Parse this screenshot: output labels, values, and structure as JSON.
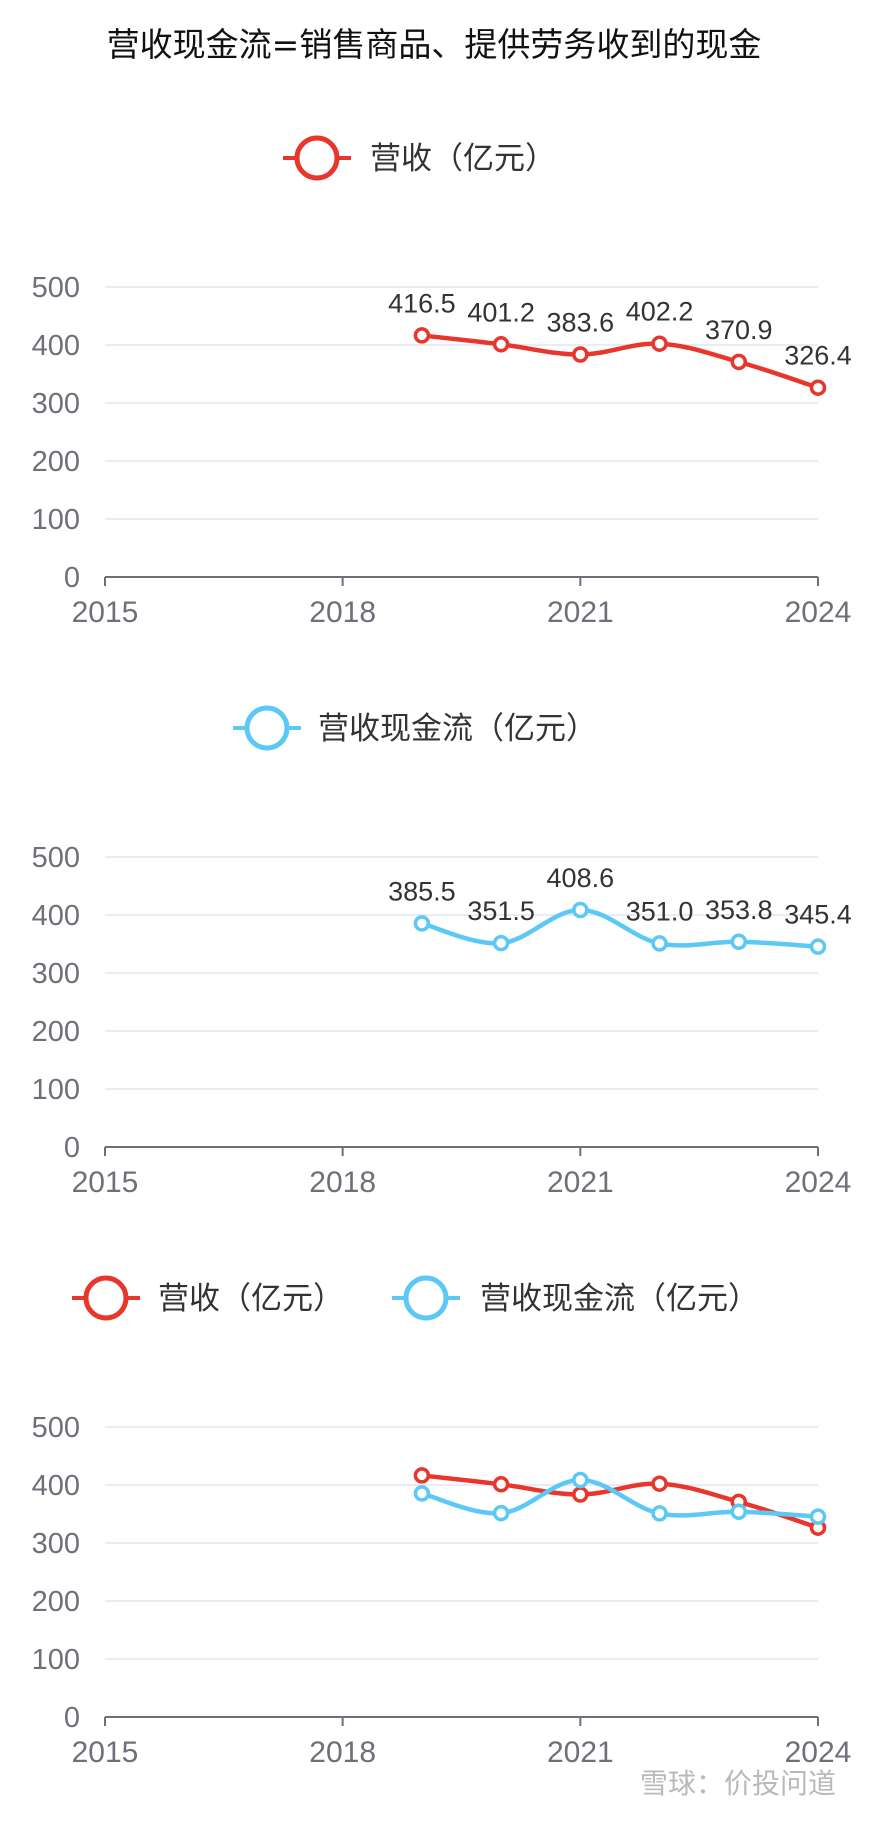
{
  "title": "营收现金流=销售商品、提供劳务收到的现金",
  "watermark": "雪球：价投问道",
  "colors": {
    "revenue": "#e8362c",
    "cashflow": "#5cc8f5",
    "axis": "#6e7079",
    "grid": "#e0e6f1",
    "label": "#333333",
    "tick": "#6e7079"
  },
  "chart_data": [
    {
      "type": "line",
      "legend": [
        "营收（亿元）"
      ],
      "x_ticks": [
        "2015",
        "2018",
        "2021",
        "2024"
      ],
      "xlim": [
        2015,
        2024
      ],
      "ylim": [
        0,
        500
      ],
      "y_ticks": [
        "0",
        "100",
        "200",
        "300",
        "400",
        "500"
      ],
      "show_labels": true,
      "smooth": true,
      "series": [
        {
          "name": "营收（亿元）",
          "color": "#e8362c",
          "x": [
            2019,
            2020,
            2021,
            2022,
            2023,
            2024
          ],
          "values": [
            416.5,
            401.2,
            383.6,
            402.2,
            370.9,
            326.4
          ],
          "labels": [
            "416.5",
            "401.2",
            "383.6",
            "402.2",
            "370.9",
            "326.4"
          ]
        }
      ]
    },
    {
      "type": "line",
      "legend": [
        "营收现金流（亿元）"
      ],
      "x_ticks": [
        "2015",
        "2018",
        "2021",
        "2024"
      ],
      "xlim": [
        2015,
        2024
      ],
      "ylim": [
        0,
        500
      ],
      "y_ticks": [
        "0",
        "100",
        "200",
        "300",
        "400",
        "500"
      ],
      "show_labels": true,
      "smooth": true,
      "series": [
        {
          "name": "营收现金流（亿元）",
          "color": "#5cc8f5",
          "x": [
            2019,
            2020,
            2021,
            2022,
            2023,
            2024
          ],
          "values": [
            385.5,
            351.5,
            408.6,
            351.0,
            353.8,
            345.4
          ],
          "labels": [
            "385.5",
            "351.5",
            "408.6",
            "351.0",
            "353.8",
            "345.4"
          ]
        }
      ]
    },
    {
      "type": "line",
      "legend": [
        "营收（亿元）",
        "营收现金流（亿元）"
      ],
      "x_ticks": [
        "2015",
        "2018",
        "2021",
        "2024"
      ],
      "xlim": [
        2015,
        2024
      ],
      "ylim": [
        0,
        500
      ],
      "y_ticks": [
        "0",
        "100",
        "200",
        "300",
        "400",
        "500"
      ],
      "show_labels": false,
      "smooth": true,
      "series": [
        {
          "name": "营收（亿元）",
          "color": "#e8362c",
          "x": [
            2019,
            2020,
            2021,
            2022,
            2023,
            2024
          ],
          "values": [
            416.5,
            401.2,
            383.6,
            402.2,
            370.9,
            326.4
          ]
        },
        {
          "name": "营收现金流（亿元）",
          "color": "#5cc8f5",
          "x": [
            2019,
            2020,
            2021,
            2022,
            2023,
            2024
          ],
          "values": [
            385.5,
            351.5,
            408.6,
            351.0,
            353.8,
            345.4
          ]
        }
      ]
    }
  ]
}
